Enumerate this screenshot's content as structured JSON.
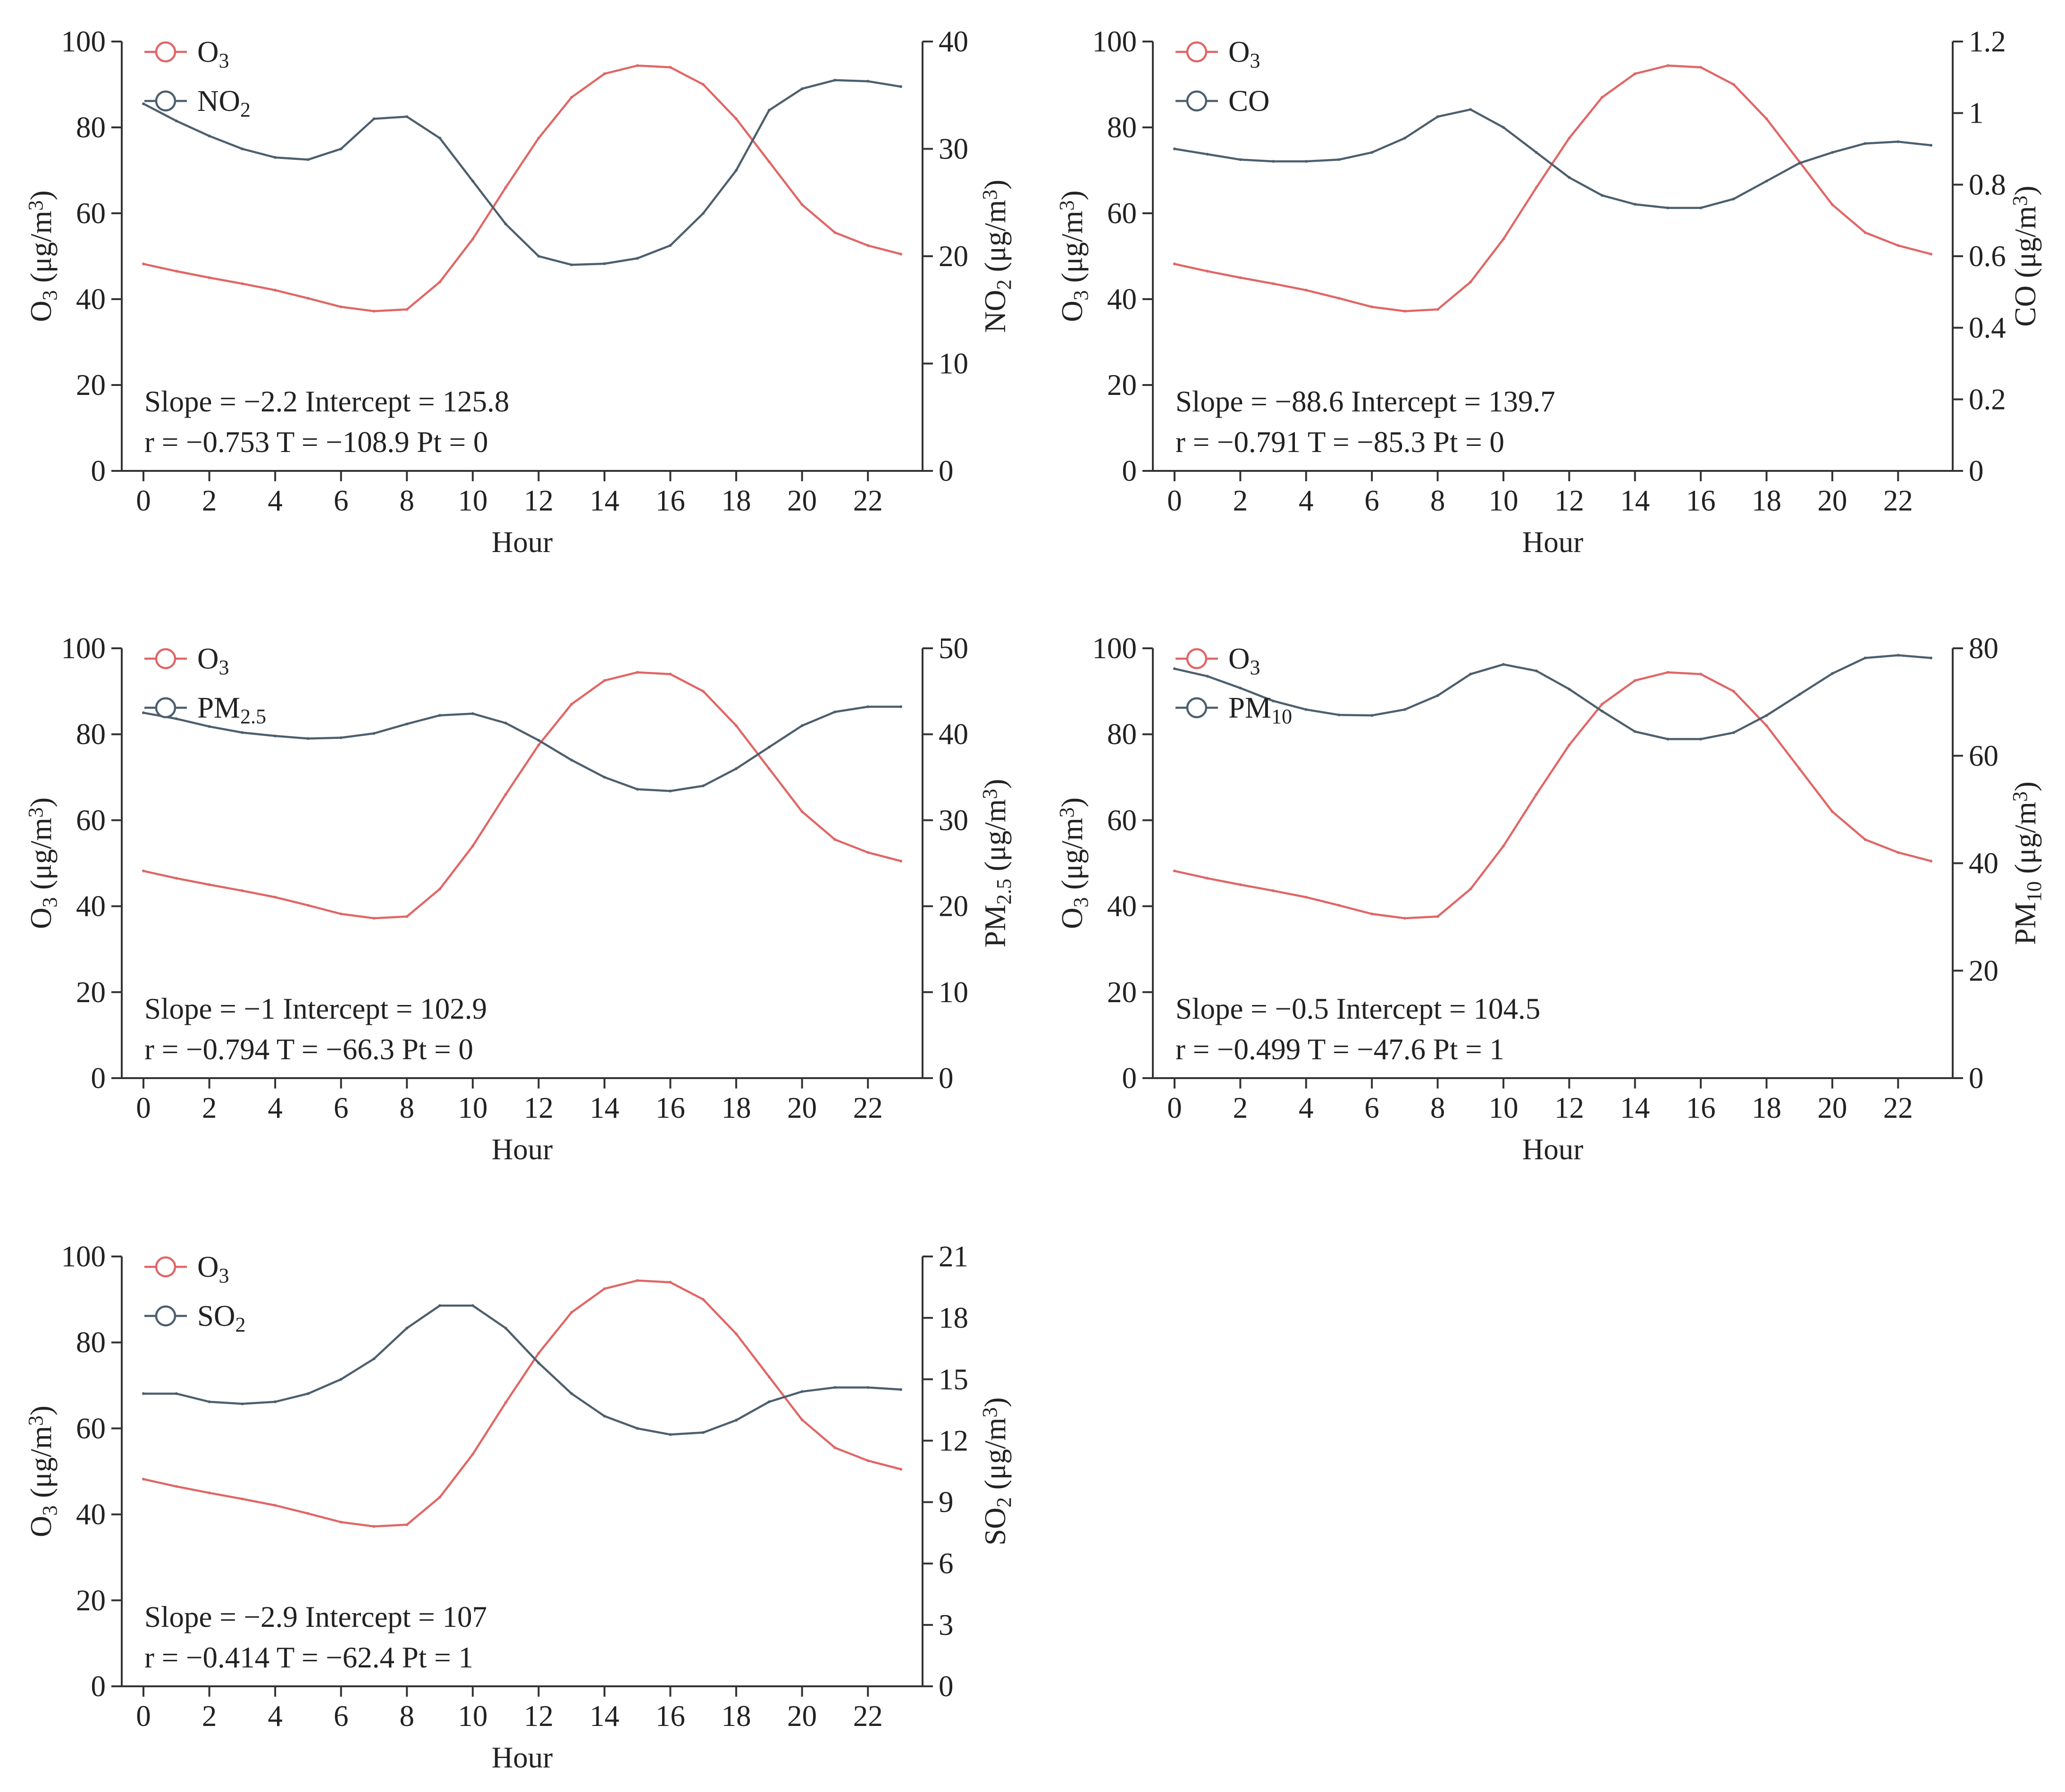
{
  "colors": {
    "o3": "#e06666",
    "pollutant": "#4d5f6e",
    "text": "#222222"
  },
  "chart_data": [
    {
      "type": "line",
      "xlabel": "Hour",
      "xlim": [
        0,
        23
      ],
      "x_ticks": [
        "0",
        "2",
        "4",
        "6",
        "8",
        "10",
        "12",
        "14",
        "16",
        "18",
        "20",
        "22"
      ],
      "ylabel_left": {
        "base": "O",
        "sub": "3",
        "unit": " (μg/m",
        "sup": "3",
        "close": ")"
      },
      "ylim_left": [
        0,
        100
      ],
      "y_ticks_left": [
        "0",
        "20",
        "40",
        "60",
        "80",
        "100"
      ],
      "ylabel_right": {
        "base": "NO",
        "sub": "2",
        "unit": " (μg/m",
        "sup": "3",
        "close": ")"
      },
      "ylim_right": [
        0,
        40
      ],
      "y_ticks_right": [
        "0",
        "10",
        "20",
        "30",
        "40"
      ],
      "legend": [
        {
          "base": "O",
          "sub": "3"
        },
        {
          "base": "NO",
          "sub": "2"
        }
      ],
      "stats_line1": "Slope = −2.2   Intercept = 125.8",
      "stats_line2": "r = −0.753   T = −108.9   Pt = 0",
      "x": [
        0,
        1,
        2,
        3,
        4,
        5,
        6,
        7,
        8,
        9,
        10,
        11,
        12,
        13,
        14,
        15,
        16,
        17,
        18,
        19,
        20,
        21,
        22,
        23
      ],
      "series": [
        {
          "key": "o3",
          "values": [
            48.2,
            46.5,
            45,
            43.6,
            42.1,
            40.2,
            38.2,
            37.2,
            37.6,
            44,
            54,
            66,
            77.5,
            87,
            92.5,
            94.4,
            94,
            90,
            82,
            72,
            62,
            55.5,
            52.5,
            50.5
          ]
        },
        {
          "key": "pollutant",
          "values": [
            34.2,
            32.6,
            31.2,
            30,
            29.2,
            29,
            30,
            32.8,
            33,
            31,
            27,
            23,
            20,
            19.2,
            19.3,
            19.8,
            21,
            24,
            28,
            33.6,
            35.6,
            36.4,
            36.3,
            35.8
          ]
        }
      ]
    },
    {
      "type": "line",
      "xlabel": "Hour",
      "xlim": [
        0,
        23
      ],
      "x_ticks": [
        "0",
        "2",
        "4",
        "6",
        "8",
        "10",
        "12",
        "14",
        "16",
        "18",
        "20",
        "22"
      ],
      "ylabel_left": {
        "base": "O",
        "sub": "3",
        "unit": " (μg/m",
        "sup": "3",
        "close": ")"
      },
      "ylim_left": [
        0,
        100
      ],
      "y_ticks_left": [
        "0",
        "20",
        "40",
        "60",
        "80",
        "100"
      ],
      "ylabel_right": {
        "base": "CO",
        "sub": "",
        "unit": " (μg/m",
        "sup": "3",
        "close": ")"
      },
      "ylim_right": [
        0,
        1.2
      ],
      "y_ticks_right": [
        "0",
        "0.2",
        "0.4",
        "0.6",
        "0.8",
        "1",
        "1.2"
      ],
      "legend": [
        {
          "base": "O",
          "sub": "3"
        },
        {
          "base": "CO",
          "sub": ""
        }
      ],
      "stats_line1": "Slope = −88.6   Intercept = 139.7",
      "stats_line2": "r = −0.791   T = −85.3   Pt = 0",
      "x": [
        0,
        1,
        2,
        3,
        4,
        5,
        6,
        7,
        8,
        9,
        10,
        11,
        12,
        13,
        14,
        15,
        16,
        17,
        18,
        19,
        20,
        21,
        22,
        23
      ],
      "series": [
        {
          "key": "o3",
          "values": [
            48.2,
            46.5,
            45,
            43.6,
            42.1,
            40.2,
            38.2,
            37.2,
            37.6,
            44,
            54,
            66,
            77.5,
            87,
            92.5,
            94.4,
            94,
            90,
            82,
            72,
            62,
            55.5,
            52.5,
            50.5
          ]
        },
        {
          "key": "pollutant",
          "values": [
            0.9,
            0.885,
            0.87,
            0.865,
            0.865,
            0.87,
            0.89,
            0.93,
            0.99,
            1.01,
            0.96,
            0.89,
            0.82,
            0.77,
            0.745,
            0.735,
            0.735,
            0.76,
            0.81,
            0.86,
            0.89,
            0.915,
            0.92,
            0.91
          ]
        }
      ]
    },
    {
      "type": "line",
      "xlabel": "Hour",
      "xlim": [
        0,
        23
      ],
      "x_ticks": [
        "0",
        "2",
        "4",
        "6",
        "8",
        "10",
        "12",
        "14",
        "16",
        "18",
        "20",
        "22"
      ],
      "ylabel_left": {
        "base": "O",
        "sub": "3",
        "unit": " (μg/m",
        "sup": "3",
        "close": ")"
      },
      "ylim_left": [
        0,
        100
      ],
      "y_ticks_left": [
        "0",
        "20",
        "40",
        "60",
        "80",
        "100"
      ],
      "ylabel_right": {
        "base": "PM",
        "sub": "2.5",
        "unit": " (μg/m",
        "sup": "3",
        "close": ")"
      },
      "ylim_right": [
        0,
        50
      ],
      "y_ticks_right": [
        "0",
        "10",
        "20",
        "30",
        "40",
        "50"
      ],
      "legend": [
        {
          "base": "O",
          "sub": "3"
        },
        {
          "base": "PM",
          "sub": "2.5"
        }
      ],
      "stats_line1": "Slope = −1   Intercept = 102.9",
      "stats_line2": "r = −0.794   T = −66.3   Pt = 0",
      "x": [
        0,
        1,
        2,
        3,
        4,
        5,
        6,
        7,
        8,
        9,
        10,
        11,
        12,
        13,
        14,
        15,
        16,
        17,
        18,
        19,
        20,
        21,
        22,
        23
      ],
      "series": [
        {
          "key": "o3",
          "values": [
            48.2,
            46.5,
            45,
            43.6,
            42.1,
            40.2,
            38.2,
            37.2,
            37.6,
            44,
            54,
            66,
            77.5,
            87,
            92.5,
            94.4,
            94,
            90,
            82,
            72,
            62,
            55.5,
            52.5,
            50.5
          ]
        },
        {
          "key": "pollutant",
          "values": [
            42.5,
            41.8,
            40.9,
            40.2,
            39.8,
            39.5,
            39.6,
            40.1,
            41.2,
            42.2,
            42.4,
            41.3,
            39.3,
            37,
            35,
            33.6,
            33.4,
            34,
            36,
            38.5,
            41,
            42.6,
            43.2,
            43.2
          ]
        }
      ]
    },
    {
      "type": "line",
      "xlabel": "Hour",
      "xlim": [
        0,
        23
      ],
      "x_ticks": [
        "0",
        "2",
        "4",
        "6",
        "8",
        "10",
        "12",
        "14",
        "16",
        "18",
        "20",
        "22"
      ],
      "ylabel_left": {
        "base": "O",
        "sub": "3",
        "unit": " (μg/m",
        "sup": "3",
        "close": ")"
      },
      "ylim_left": [
        0,
        100
      ],
      "y_ticks_left": [
        "0",
        "20",
        "40",
        "60",
        "80",
        "100"
      ],
      "ylabel_right": {
        "base": "PM",
        "sub": "10",
        "unit": " (μg/m",
        "sup": "3",
        "close": ")"
      },
      "ylim_right": [
        0,
        80
      ],
      "y_ticks_right": [
        "0",
        "20",
        "40",
        "60",
        "80"
      ],
      "legend": [
        {
          "base": "O",
          "sub": "3"
        },
        {
          "base": "PM",
          "sub": "10"
        }
      ],
      "stats_line1": "Slope = −0.5   Intercept = 104.5",
      "stats_line2": "r = −0.499   T = −47.6   Pt = 1",
      "x": [
        0,
        1,
        2,
        3,
        4,
        5,
        6,
        7,
        8,
        9,
        10,
        11,
        12,
        13,
        14,
        15,
        16,
        17,
        18,
        19,
        20,
        21,
        22,
        23
      ],
      "series": [
        {
          "key": "o3",
          "values": [
            48.2,
            46.5,
            45,
            43.6,
            42.1,
            40.2,
            38.2,
            37.2,
            37.6,
            44,
            54,
            66,
            77.5,
            87,
            92.5,
            94.4,
            94,
            90,
            82,
            72,
            62,
            55.5,
            52.5,
            50.5
          ]
        },
        {
          "key": "pollutant",
          "values": [
            76.2,
            74.8,
            72.6,
            70.2,
            68.6,
            67.6,
            67.5,
            68.6,
            71.2,
            75.2,
            77,
            75.8,
            72.4,
            68.3,
            64.5,
            63.1,
            63.1,
            64.3,
            67.5,
            71.4,
            75.3,
            78.2,
            78.7,
            78.2
          ]
        }
      ]
    },
    {
      "type": "line",
      "xlabel": "Hour",
      "xlim": [
        0,
        23
      ],
      "x_ticks": [
        "0",
        "2",
        "4",
        "6",
        "8",
        "10",
        "12",
        "14",
        "16",
        "18",
        "20",
        "22"
      ],
      "ylabel_left": {
        "base": "O",
        "sub": "3",
        "unit": " (μg/m",
        "sup": "3",
        "close": ")"
      },
      "ylim_left": [
        0,
        100
      ],
      "y_ticks_left": [
        "0",
        "20",
        "40",
        "60",
        "80",
        "100"
      ],
      "ylabel_right": {
        "base": "SO",
        "sub": "2",
        "unit": " (μg/m",
        "sup": "3",
        "close": ")"
      },
      "ylim_right": [
        0,
        21
      ],
      "y_ticks_right": [
        "0",
        "3",
        "6",
        "9",
        "12",
        "15",
        "18",
        "21"
      ],
      "legend": [
        {
          "base": "O",
          "sub": "3"
        },
        {
          "base": "SO",
          "sub": "2"
        }
      ],
      "stats_line1": "Slope = −2.9   Intercept = 107",
      "stats_line2": "r = −0.414   T = −62.4   Pt = 1",
      "x": [
        0,
        1,
        2,
        3,
        4,
        5,
        6,
        7,
        8,
        9,
        10,
        11,
        12,
        13,
        14,
        15,
        16,
        17,
        18,
        19,
        20,
        21,
        22,
        23
      ],
      "series": [
        {
          "key": "o3",
          "values": [
            48.2,
            46.5,
            45,
            43.6,
            42.1,
            40.2,
            38.2,
            37.2,
            37.6,
            44,
            54,
            66,
            77.5,
            87,
            92.5,
            94.4,
            94,
            90,
            82,
            72,
            62,
            55.5,
            52.5,
            50.5
          ]
        },
        {
          "key": "pollutant",
          "values": [
            14.3,
            14.3,
            13.9,
            13.8,
            13.9,
            14.3,
            15,
            16,
            17.5,
            18.6,
            18.6,
            17.5,
            15.8,
            14.3,
            13.2,
            12.6,
            12.3,
            12.4,
            13,
            13.9,
            14.4,
            14.6,
            14.6,
            14.5
          ]
        }
      ]
    }
  ]
}
